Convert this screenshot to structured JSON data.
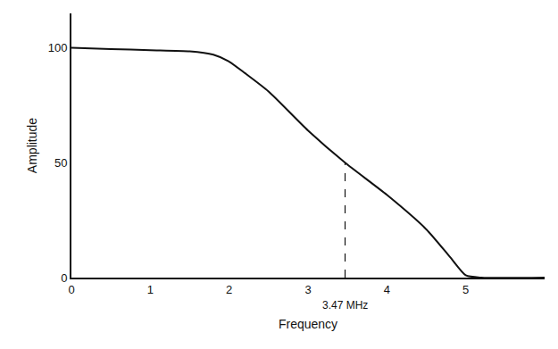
{
  "chart_data": {
    "type": "line",
    "x_label": "Frequency",
    "y_label": "Amplitude",
    "x": [
      0,
      0.5,
      1,
      1.5,
      1.8,
      2,
      2.2,
      2.5,
      3,
      3.47,
      4,
      4.5,
      4.8,
      5,
      5.2,
      6
    ],
    "values": [
      100,
      99.5,
      99,
      98.5,
      97,
      94,
      89,
      81,
      64,
      50,
      36,
      21,
      9,
      1,
      0,
      0
    ],
    "color": "#111111",
    "line_style": "solid",
    "xlim": [
      0,
      6
    ],
    "xticks": [
      0,
      1,
      2,
      3,
      4,
      5
    ],
    "ylim": [
      0,
      115
    ],
    "yticks": [
      0,
      50,
      100
    ],
    "grid": false,
    "annotations": [
      {
        "text": "3.47 MHz",
        "x": 3.47,
        "y": 50,
        "line_style": "dash"
      }
    ]
  }
}
